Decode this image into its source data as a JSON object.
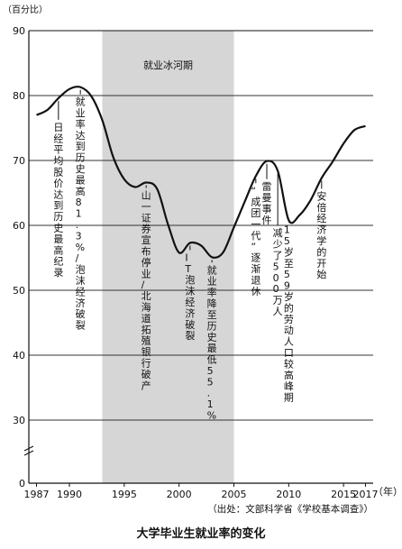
{
  "chart_data": {
    "type": "line",
    "title": "大学毕业生就业率的变化",
    "ylabel": "（百分比）",
    "xlabel_unit": "（年）",
    "source": "（出处：文部科学省《学校基本调查》）",
    "ylim": [
      0,
      90
    ],
    "yticks": [
      "0",
      "30",
      "40",
      "50",
      "60",
      "70",
      "80",
      "90"
    ],
    "xticks": [
      "1987",
      "1990",
      "1995",
      "2000",
      "2005",
      "2010",
      "2015",
      "2017"
    ],
    "grid": true,
    "shaded_band": {
      "label": "就业冰河期",
      "x_start": 1993.0,
      "x_end": 2005.0
    },
    "x": [
      1987,
      1988,
      1989,
      1990,
      1991,
      1992,
      1993,
      1994,
      1995,
      1996,
      1997,
      1998,
      1999,
      2000,
      2001,
      2002,
      2003,
      2004,
      2005,
      2006,
      2007,
      2008,
      2009,
      2010,
      2011,
      2012,
      2013,
      2014,
      2015,
      2016,
      2017
    ],
    "values": [
      77.0,
      77.8,
      79.6,
      81.0,
      81.3,
      79.9,
      76.2,
      70.5,
      67.1,
      65.9,
      66.6,
      65.6,
      60.1,
      55.8,
      57.3,
      56.9,
      55.1,
      55.8,
      59.7,
      63.7,
      67.6,
      69.9,
      68.4,
      60.8,
      61.6,
      63.9,
      67.3,
      69.8,
      72.6,
      74.7,
      75.3
    ],
    "annotations": [
      {
        "text": "日经平均股价达到历史最高纪录",
        "x": 1989
      },
      {
        "text": "就业率达到历史最高81.3%/泡沫经济破裂",
        "x": 1991
      },
      {
        "text": "山一证券宣布停业/北海道拓殖银行破产",
        "x": 1997
      },
      {
        "text": "IT泡沫经济破裂",
        "x": 2001
      },
      {
        "text": "就业率降至历史最低55.1%",
        "x": 2003
      },
      {
        "text": "“成团一代”逐渐退休",
        "x": 2007
      },
      {
        "text": "雷曼事件",
        "x": 2008
      },
      {
        "text": "减少了500万人",
        "x": 2009
      },
      {
        "text": "15岁至59岁的劳动人口较高峰期",
        "x": 2010
      },
      {
        "text": "安倍经济学的开始",
        "x": 2013
      }
    ]
  }
}
